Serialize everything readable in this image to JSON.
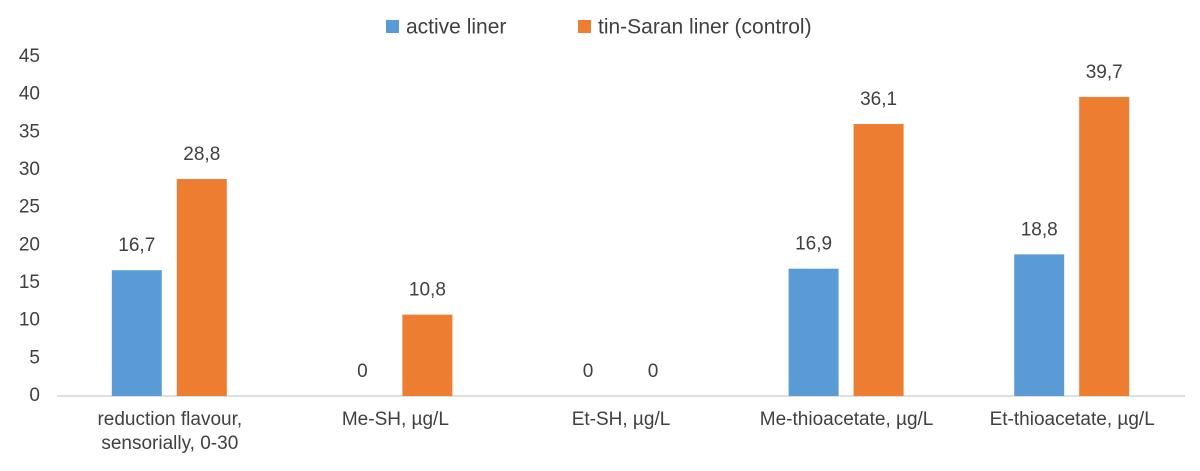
{
  "chart_data": {
    "type": "bar",
    "categories": [
      "reduction flavour, sensorially, 0-30",
      "Me-SH, µg/L",
      "Et-SH, µg/L",
      "Me-thioacetate, µg/L",
      "Et-thioacetate, µg/L"
    ],
    "series": [
      {
        "name": "active liner",
        "color": "#5b9bd5",
        "values": [
          16.7,
          0,
          0,
          16.9,
          18.8
        ],
        "value_labels": [
          "16,7",
          "0",
          "0",
          "16,9",
          "18,8"
        ]
      },
      {
        "name": "tin-Saran liner (control)",
        "color": "#ed7d31",
        "values": [
          28.8,
          10.8,
          0,
          36.1,
          39.7
        ],
        "value_labels": [
          "28,8",
          "10,8",
          "0",
          "36,1",
          "39,7"
        ]
      }
    ],
    "ylim": [
      0,
      45
    ],
    "yticks": [
      0,
      5,
      10,
      15,
      20,
      25,
      30,
      35,
      40,
      45
    ],
    "grid": false,
    "legend": "top"
  }
}
